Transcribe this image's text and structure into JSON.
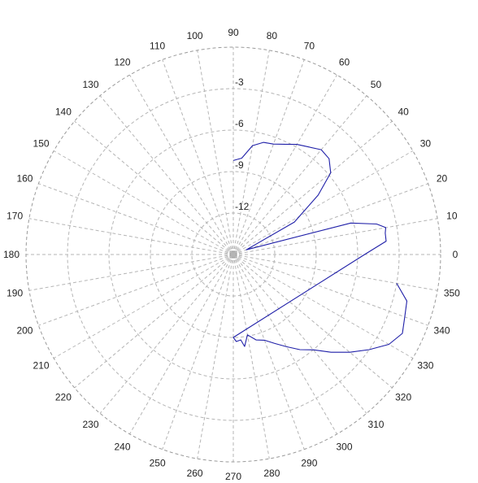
{
  "chart_data": {
    "type": "line",
    "subtype": "polar",
    "angle_unit": "degrees",
    "angle_ticks": [
      "0",
      "10",
      "20",
      "30",
      "40",
      "50",
      "60",
      "70",
      "80",
      "90",
      "100",
      "110",
      "120",
      "130",
      "140",
      "150",
      "160",
      "170",
      "180",
      "190",
      "200",
      "210",
      "220",
      "230",
      "240",
      "250",
      "260",
      "270",
      "280",
      "290",
      "300",
      "310",
      "320",
      "330",
      "340",
      "350"
    ],
    "radial_ticks": [
      {
        "value": -12,
        "label": "-12"
      },
      {
        "value": -9,
        "label": "-9"
      },
      {
        "value": -6,
        "label": "-6"
      },
      {
        "value": -3,
        "label": "-3"
      }
    ],
    "rlim": [
      -15,
      0
    ],
    "grid": true,
    "line_color": "#1f1fa8",
    "series": [
      {
        "points": [
          {
            "angle": 350,
            "r": -3.0
          },
          {
            "angle": 345,
            "r": -2.0
          },
          {
            "angle": 340,
            "r": -1.8
          },
          {
            "angle": 335,
            "r": -1.5
          },
          {
            "angle": 330,
            "r": -2.0
          },
          {
            "angle": 325,
            "r": -3.0
          },
          {
            "angle": 320,
            "r": -4.0
          },
          {
            "angle": 315,
            "r": -5.0
          },
          {
            "angle": 310,
            "r": -6.0
          },
          {
            "angle": 305,
            "r": -6.6
          },
          {
            "angle": 300,
            "r": -7.3
          },
          {
            "angle": 295,
            "r": -7.9
          },
          {
            "angle": 290,
            "r": -8.4
          },
          {
            "angle": 285,
            "r": -8.6
          },
          {
            "angle": 280,
            "r": -9.1
          },
          {
            "angle": 277,
            "r": -8.3
          },
          {
            "angle": 275,
            "r": -8.8
          },
          {
            "angle": 272,
            "r": -8.7
          },
          {
            "angle": 270,
            "r": -9.0
          },
          {
            "angle": 0,
            "r": -5.5
          },
          {
            "angle": 5,
            "r": -3.9
          },
          {
            "angle": 8,
            "r": -3.9
          },
          {
            "angle": 10,
            "r": -3.8
          },
          {
            "angle": 12,
            "r": -4.4
          },
          {
            "angle": 15,
            "r": -6.2
          },
          {
            "angle": 20,
            "r": -14.0
          },
          {
            "angle": 28,
            "r": -10.0
          },
          {
            "angle": 35,
            "r": -7.5
          },
          {
            "angle": 40,
            "r": -5.8
          },
          {
            "angle": 45,
            "r": -5.2
          },
          {
            "angle": 50,
            "r": -5.1
          },
          {
            "angle": 55,
            "r": -5.5
          },
          {
            "angle": 60,
            "r": -5.8
          },
          {
            "angle": 65,
            "r": -6.2
          },
          {
            "angle": 70,
            "r": -6.5
          },
          {
            "angle": 75,
            "r": -6.6
          },
          {
            "angle": 80,
            "r": -7.0
          },
          {
            "angle": 85,
            "r": -8.0
          },
          {
            "angle": 90,
            "r": -8.2
          }
        ]
      }
    ]
  }
}
